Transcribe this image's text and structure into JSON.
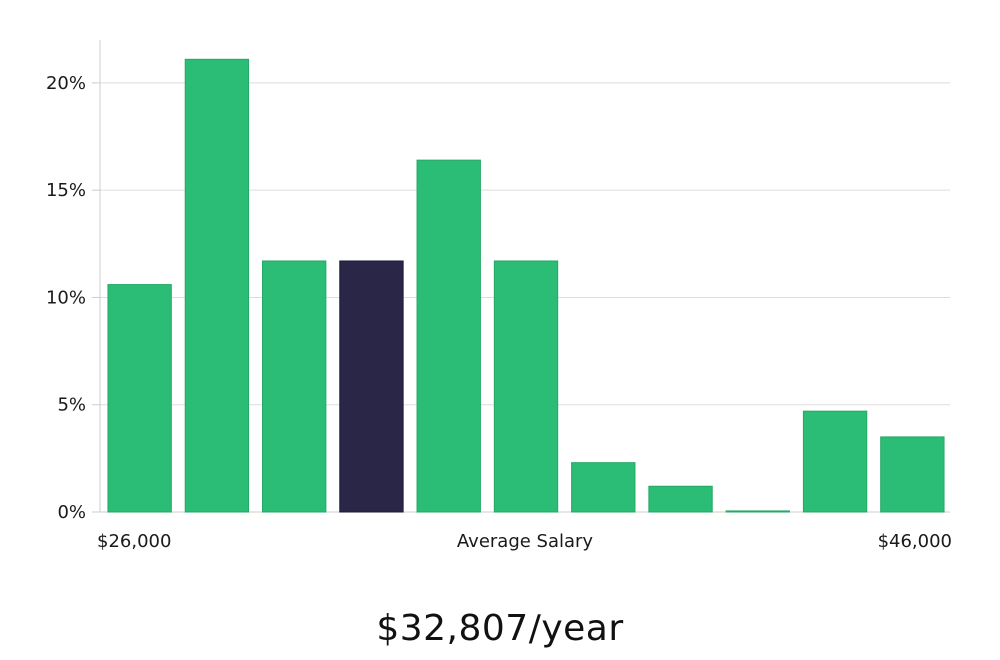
{
  "chart_data": {
    "type": "bar",
    "title": "",
    "xlabel": "Average Salary",
    "ylabel": "",
    "x_min_label": "$26,000",
    "x_max_label": "$46,000",
    "values": [
      10.6,
      21.1,
      11.7,
      11.7,
      16.4,
      11.7,
      2.3,
      1.2,
      0.05,
      4.7,
      3.5
    ],
    "highlight_index": 3,
    "ylim": [
      0,
      22
    ],
    "yticks": [
      0,
      5,
      10,
      15,
      20
    ],
    "ytick_labels": [
      "0%",
      "5%",
      "10%",
      "15%",
      "20%"
    ],
    "grid": true,
    "colors": {
      "bar": "#2bbd76",
      "highlight": "#2a2647",
      "grid": "#dddddd",
      "axis": "#cccccc"
    }
  },
  "caption": "$32,807/year"
}
